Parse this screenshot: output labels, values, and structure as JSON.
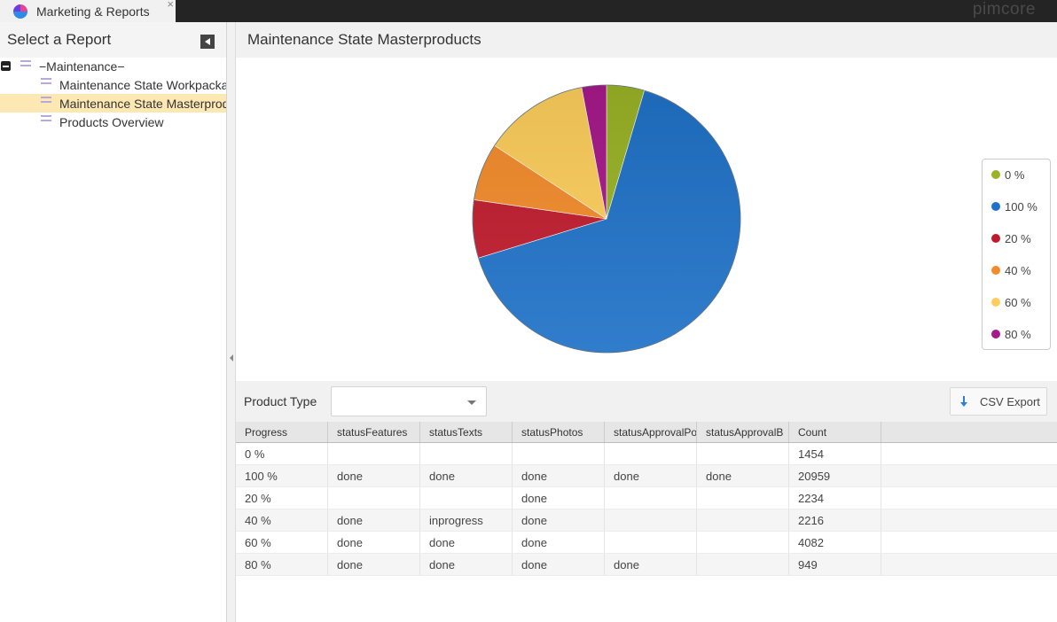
{
  "tab": {
    "title": "Marketing & Reports",
    "close": "×"
  },
  "brand": "pimcore",
  "left": {
    "title": "Select a Report",
    "tree": [
      {
        "label": "−Maintenance−",
        "level": 0
      },
      {
        "label": "Maintenance State Workpackages",
        "level": 1
      },
      {
        "label": "Maintenance State Masterproducts",
        "level": 1,
        "selected": true
      },
      {
        "label": "Products Overview",
        "level": 1
      }
    ]
  },
  "main": {
    "title": "Maintenance State Masterproducts",
    "product_type_label": "Product Type",
    "product_type_value": "",
    "csv_label": "CSV Export"
  },
  "chart_data": {
    "type": "pie",
    "slices": [
      {
        "label": "0 %",
        "value": 1454,
        "color": "#9ab326"
      },
      {
        "label": "100 %",
        "value": 20959,
        "color": "#1f72c8"
      },
      {
        "label": "20 %",
        "value": 2234,
        "color": "#bf1b2c"
      },
      {
        "label": "40 %",
        "value": 2216,
        "color": "#f38b2b"
      },
      {
        "label": "60 %",
        "value": 4082,
        "color": "#fdce5b"
      },
      {
        "label": "80 %",
        "value": 949,
        "color": "#a6198a"
      }
    ],
    "legend": [
      "0 %",
      "100 %",
      "20 %",
      "40 %",
      "60 %",
      "80 %"
    ],
    "legend_position": "right"
  },
  "table": {
    "columns": [
      "Progress",
      "statusFeatures",
      "statusTexts",
      "statusPhotos",
      "statusApprovalPo",
      "statusApprovalB",
      "Count"
    ],
    "rows": [
      [
        "0 %",
        "",
        "",
        "",
        "",
        "",
        "1454"
      ],
      [
        "100 %",
        "done",
        "done",
        "done",
        "done",
        "done",
        "20959"
      ],
      [
        "20 %",
        "",
        "",
        "done",
        "",
        "",
        "2234"
      ],
      [
        "40 %",
        "done",
        "inprogress",
        "done",
        "",
        "",
        "2216"
      ],
      [
        "60 %",
        "done",
        "done",
        "done",
        "",
        "",
        "4082"
      ],
      [
        "80 %",
        "done",
        "done",
        "done",
        "done",
        "",
        "949"
      ]
    ]
  }
}
